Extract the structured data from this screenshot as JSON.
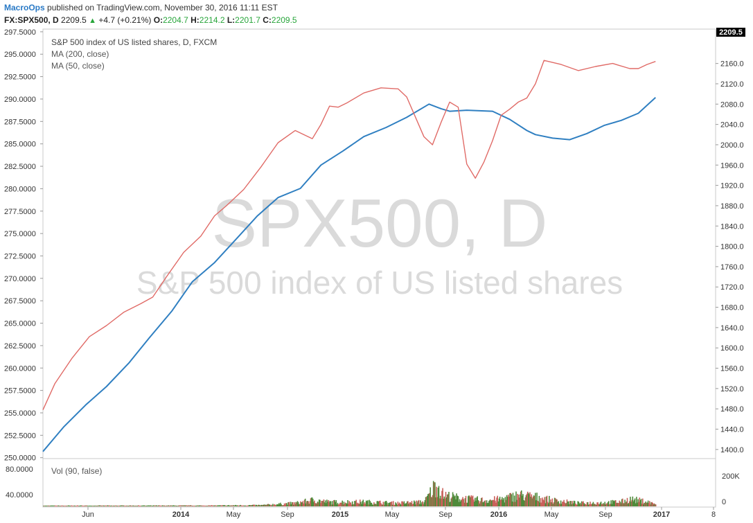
{
  "header": {
    "publisher": "MacroOps",
    "published_text": "published on TradingView.com, November 30, 2016 11:11 EST",
    "symbol": "FX:SPX500, D",
    "last": "2209.5",
    "change": "+4.7 (+0.21%)",
    "open_label": "O:",
    "open": "2204.7",
    "high_label": "H:",
    "high": "2214.2",
    "low_label": "L:",
    "low": "2201.7",
    "close_label": "C:",
    "close": "2209.5"
  },
  "watermark": {
    "big": "SPX500, D",
    "small": "S&P 500 index of US listed shares"
  },
  "legend": {
    "title": "S&P 500 index of US listed shares, D, FXCM",
    "ma200": "MA (200, close)",
    "ma50": "MA (50, close)",
    "vol": "Vol (90, false)"
  },
  "price_tag": "2209.5",
  "colors": {
    "ma200": "#2f7fc1",
    "ma50": "#e06a66",
    "vol_up": "#4f8a3a",
    "vol_down": "#c9605a",
    "price_tag_bg": "#000000"
  },
  "chart_data": {
    "type": "line",
    "title": "S&P 500 index of US listed shares, D, FXCM",
    "x_ticks": [
      "Jun",
      "2014",
      "May",
      "Sep",
      "2015",
      "May",
      "Sep",
      "2016",
      "May",
      "Sep",
      "2017",
      "8"
    ],
    "left_axis": {
      "ticks": [
        "297.5000",
        "295.0000",
        "292.5000",
        "290.0000",
        "287.5000",
        "285.0000",
        "282.5000",
        "280.0000",
        "277.5000",
        "275.0000",
        "272.5000",
        "270.0000",
        "267.5000",
        "265.0000",
        "262.5000",
        "260.0000",
        "257.5000",
        "255.0000",
        "252.5000",
        "250.0000"
      ],
      "ylim": [
        249.9,
        297.8
      ]
    },
    "right_axis": {
      "ticks": [
        "2160.0",
        "2120.0",
        "2080.0",
        "2040.0",
        "2000.0",
        "1960.0",
        "1920.0",
        "1880.0",
        "1840.0",
        "1800.0",
        "1760.0",
        "1720.0",
        "1680.0",
        "1640.0",
        "1600.0",
        "1560.0",
        "1520.0",
        "1480.0",
        "1440.0",
        "1400.0"
      ],
      "ylim": [
        1382.1,
        2227.7
      ]
    },
    "x_range": [
      2013.33,
      2017.25
    ],
    "series": [
      {
        "name": "MA (200, close)",
        "x": [
          2013.33,
          2013.45,
          2013.58,
          2013.7,
          2013.83,
          2013.95,
          2014.08,
          2014.2,
          2014.33,
          2014.45,
          2014.58,
          2014.7,
          2014.83,
          2014.95,
          2015.08,
          2015.2,
          2015.33,
          2015.45,
          2015.58,
          2015.65,
          2015.7,
          2015.8,
          2015.95,
          2016.05,
          2016.15,
          2016.2,
          2016.3,
          2016.4,
          2016.5,
          2016.6,
          2016.7,
          2016.8,
          2016.9
        ],
        "y": [
          1396,
          1444,
          1488,
          1524,
          1570,
          1620,
          1672,
          1730,
          1768,
          1812,
          1860,
          1896,
          1914,
          1960,
          1988,
          2016,
          2034,
          2054,
          2080,
          2071,
          2066,
          2068,
          2066,
          2050,
          2028,
          2020,
          2013,
          2010,
          2022,
          2038,
          2048,
          2062,
          2093
        ]
      },
      {
        "name": "MA (50, close)",
        "x": [
          2013.33,
          2013.4,
          2013.5,
          2013.6,
          2013.7,
          2013.8,
          2013.9,
          2013.97,
          2014.05,
          2014.15,
          2014.25,
          2014.33,
          2014.4,
          2014.5,
          2014.6,
          2014.7,
          2014.8,
          2014.9,
          2014.95,
          2015.0,
          2015.05,
          2015.1,
          2015.2,
          2015.3,
          2015.4,
          2015.45,
          2015.55,
          2015.6,
          2015.65,
          2015.7,
          2015.75,
          2015.8,
          2015.85,
          2015.9,
          2015.95,
          2016.0,
          2016.05,
          2016.1,
          2016.15,
          2016.2,
          2016.25,
          2016.35,
          2016.45,
          2016.55,
          2016.65,
          2016.75,
          2016.8,
          2016.85,
          2016.9
        ],
        "y": [
          1478,
          1530,
          1580,
          1622,
          1644,
          1670,
          1687,
          1700,
          1740,
          1788,
          1820,
          1860,
          1880,
          1912,
          1956,
          2004,
          2028,
          2012,
          2040,
          2076,
          2074,
          2082,
          2102,
          2112,
          2110,
          2094,
          2016,
          2000,
          2044,
          2084,
          2074,
          1962,
          1934,
          1966,
          2008,
          2058,
          2070,
          2084,
          2092,
          2120,
          2166,
          2158,
          2146,
          2154,
          2160,
          2150,
          2150,
          2158,
          2164
        ]
      }
    ],
    "volume": {
      "name": "Vol (90, false)",
      "left_ticks": [
        "80.0000",
        "40.0000"
      ],
      "right_ticks": [
        "200K",
        "0"
      ],
      "ylim_k": [
        0,
        270
      ],
      "samples_x": [
        2013.33,
        2014.3,
        2014.6,
        2014.8,
        2014.9,
        2015.0,
        2015.2,
        2015.4,
        2015.55,
        2015.62,
        2015.66,
        2015.75,
        2015.9,
        2016.0,
        2016.1,
        2016.2,
        2016.3,
        2016.45,
        2016.6,
        2016.7,
        2016.75,
        2016.85,
        2016.9
      ],
      "samples_k": [
        4,
        5,
        8,
        22,
        42,
        28,
        30,
        22,
        30,
        150,
        75,
        55,
        40,
        48,
        75,
        62,
        40,
        22,
        25,
        32,
        48,
        30,
        15
      ]
    }
  }
}
